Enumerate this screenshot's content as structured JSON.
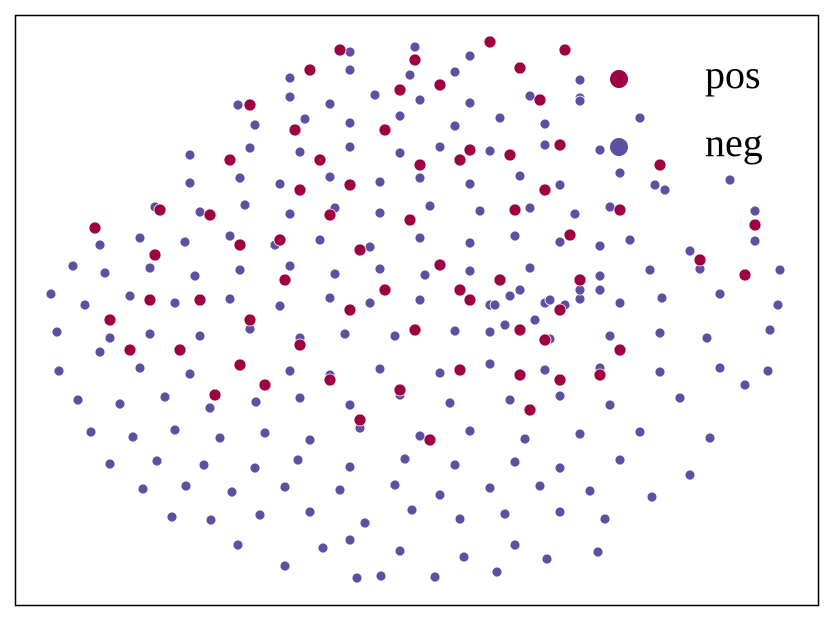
{
  "chart_data": {
    "type": "scatter",
    "legend": "upper right",
    "frame": true,
    "xlim": [
      15,
      818
    ],
    "ylim": [
      605,
      15
    ],
    "series": [
      {
        "name": "neg",
        "color": "#5e4fa2",
        "x": [
          357,
          381,
          435,
          497,
          238,
          285,
          323,
          350,
          400,
          464,
          515,
          547,
          598,
          172,
          211,
          260,
          310,
          365,
          412,
          460,
          505,
          560,
          605,
          143,
          186,
          232,
          285,
          340,
          395,
          440,
          490,
          540,
          590,
          652,
          110,
          157,
          204,
          255,
          298,
          350,
          405,
          455,
          515,
          560,
          620,
          690,
          91,
          133,
          175,
          220,
          265,
          310,
          360,
          420,
          470,
          525,
          580,
          640,
          710,
          78,
          120,
          165,
          210,
          256,
          300,
          350,
          400,
          450,
          510,
          560,
          610,
          680,
          745,
          59,
          100,
          140,
          190,
          240,
          290,
          330,
          380,
          440,
          490,
          545,
          600,
          660,
          720,
          768,
          57,
          110,
          150,
          200,
          250,
          300,
          345,
          395,
          455,
          490,
          550,
          610,
          660,
          707,
          770,
          51,
          85,
          130,
          175,
          230,
          280,
          330,
          370,
          420,
          490,
          510,
          545,
          580,
          620,
          662,
          720,
          778,
          73,
          105,
          150,
          195,
          240,
          290,
          335,
          380,
          425,
          470,
          530,
          600,
          650,
          700,
          780,
          100,
          140,
          185,
          230,
          275,
          320,
          370,
          420,
          470,
          515,
          560,
          600,
          630,
          690,
          755,
          155,
          200,
          245,
          290,
          335,
          380,
          430,
          480,
          530,
          575,
          610,
          665,
          755,
          190,
          240,
          280,
          330,
          380,
          420,
          470,
          520,
          560,
          620,
          655,
          190,
          250,
          300,
          350,
          400,
          440,
          490,
          545,
          600,
          730,
          255,
          305,
          350,
          400,
          455,
          500,
          545,
          580,
          640,
          238,
          290,
          330,
          375,
          420,
          470,
          530,
          580,
          290,
          350,
          410,
          455,
          520,
          580,
          350,
          415,
          470,
          495,
          505,
          520,
          535,
          550,
          565,
          580,
          600
        ],
        "y": [
          578,
          576,
          577,
          572,
          545,
          566,
          548,
          540,
          551,
          557,
          545,
          559,
          552,
          517,
          520,
          515,
          512,
          523,
          510,
          519,
          514,
          512,
          519,
          489,
          486,
          492,
          487,
          490,
          485,
          495,
          488,
          486,
          491,
          497,
          464,
          461,
          465,
          468,
          460,
          467,
          459,
          465,
          462,
          468,
          460,
          475,
          432,
          437,
          430,
          438,
          433,
          440,
          428,
          436,
          431,
          439,
          434,
          432,
          438,
          400,
          404,
          397,
          408,
          402,
          398,
          405,
          395,
          403,
          400,
          396,
          405,
          398,
          385,
          371,
          352,
          368,
          374,
          366,
          371,
          375,
          369,
          373,
          364,
          370,
          368,
          372,
          368,
          371,
          332,
          338,
          334,
          336,
          329,
          338,
          334,
          336,
          331,
          332,
          339,
          336,
          333,
          338,
          330,
          294,
          305,
          296,
          303,
          299,
          306,
          298,
          303,
          300,
          305,
          296,
          303,
          299,
          303,
          298,
          294,
          305,
          266,
          273,
          268,
          276,
          270,
          266,
          274,
          269,
          275,
          271,
          268,
          276,
          270,
          269,
          270,
          245,
          238,
          242,
          236,
          245,
          240,
          247,
          238,
          243,
          236,
          242,
          246,
          240,
          251,
          241,
          207,
          212,
          205,
          214,
          208,
          213,
          206,
          211,
          208,
          214,
          207,
          190,
          211,
          183,
          178,
          184,
          177,
          182,
          178,
          184,
          176,
          185,
          173,
          185,
          155,
          148,
          152,
          147,
          153,
          147,
          151,
          145,
          150,
          180,
          125,
          119,
          123,
          116,
          126,
          118,
          124,
          98,
          118,
          105,
          97,
          104,
          95,
          100,
          103,
          96,
          101,
          78,
          70,
          75,
          72,
          68,
          80,
          52,
          47,
          56,
          305,
          325,
          290,
          320,
          300,
          305,
          290,
          290
        ]
      },
      {
        "name": "pos",
        "color": "#9e0142",
        "x": [
          340,
          415,
          490,
          565,
          520,
          310,
          440,
          540,
          400,
          295,
          385,
          470,
          510,
          560,
          250,
          230,
          320,
          350,
          420,
          545,
          160,
          210,
          300,
          330,
          410,
          515,
          620,
          95,
          155,
          240,
          280,
          360,
          440,
          460,
          500,
          520,
          545,
          560,
          580,
          110,
          130,
          200,
          250,
          300,
          350,
          385,
          415,
          470,
          600,
          215,
          265,
          330,
          360,
          400,
          430,
          460,
          530,
          660,
          700,
          745,
          755,
          240,
          180,
          285,
          150,
          520,
          560,
          620,
          570,
          460
        ],
        "y": [
          50,
          60,
          42,
          50,
          68,
          70,
          85,
          100,
          90,
          130,
          130,
          150,
          155,
          145,
          105,
          160,
          160,
          185,
          165,
          190,
          210,
          215,
          190,
          215,
          220,
          210,
          210,
          228,
          255,
          245,
          240,
          250,
          265,
          290,
          280,
          330,
          340,
          310,
          280,
          320,
          350,
          300,
          320,
          345,
          310,
          290,
          330,
          300,
          375,
          395,
          385,
          380,
          420,
          390,
          440,
          370,
          410,
          165,
          260,
          275,
          225,
          365,
          350,
          280,
          300,
          375,
          380,
          350,
          235,
          160
        ]
      }
    ]
  }
}
